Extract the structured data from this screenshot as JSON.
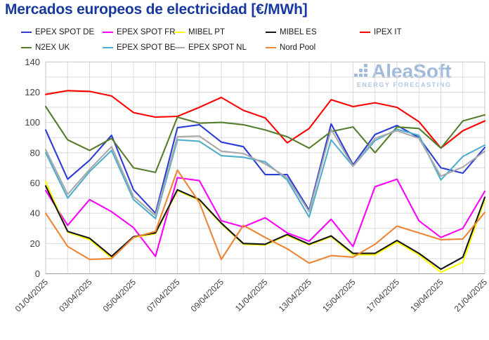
{
  "title": "Mercados europeos de electricidad [€/MWh]",
  "title_color": "#17399E",
  "watermark": {
    "name": "AleaSoft",
    "tagline": "ENERGY FORECASTING",
    "color": "#8FAFD8",
    "tagline_color": "#A3BCDE"
  },
  "axis_text_color": "#3F3F3F",
  "chart_data": {
    "type": "line",
    "title": "Mercados europeos de electricidad [€/MWh]",
    "xlabel": "",
    "ylabel": "",
    "ylim": [
      0,
      140
    ],
    "y_ticks": [
      0,
      20,
      40,
      60,
      80,
      100,
      120,
      140
    ],
    "grid": true,
    "legend_position": "top",
    "x": [
      "01/04/2025",
      "02/04/2025",
      "03/04/2025",
      "04/04/2025",
      "05/04/2025",
      "06/04/2025",
      "07/04/2025",
      "08/04/2025",
      "09/04/2025",
      "10/04/2025",
      "11/04/2025",
      "12/04/2025",
      "13/04/2025",
      "14/04/2025",
      "15/04/2025",
      "16/04/2025",
      "17/04/2025",
      "18/04/2025",
      "19/04/2025",
      "20/04/2025",
      "21/04/2025"
    ],
    "x_tick_labels_shown": [
      "01/04/2025",
      "03/04/2025",
      "05/04/2025",
      "07/04/2025",
      "09/04/2025",
      "11/04/2025",
      "13/04/2025",
      "15/04/2025",
      "17/04/2025",
      "19/04/2025",
      "21/04/2025"
    ],
    "series": [
      {
        "name": "EPEX SPOT DE",
        "color": "#2B3CD8",
        "values": [
          95,
          62.5,
          75,
          91.5,
          55.5,
          40,
          96.5,
          98.5,
          87,
          84,
          65.5,
          65.5,
          42,
          99,
          72,
          92,
          98,
          90,
          70,
          66.5,
          83.5
        ]
      },
      {
        "name": "EPEX SPOT FR",
        "color": "#FF00FF",
        "values": [
          55,
          32,
          49,
          41,
          30.5,
          11.5,
          63.5,
          61.5,
          35,
          31,
          37,
          27,
          21.5,
          36,
          18,
          57.5,
          62.5,
          35,
          24,
          30,
          54.5
        ]
      },
      {
        "name": "MIBEL PT",
        "color": "#FFFF00",
        "values": [
          61,
          27.5,
          22.5,
          10.5,
          24,
          26.5,
          55,
          48.5,
          33,
          19.5,
          19,
          25.5,
          19,
          24.5,
          12.5,
          12.5,
          21,
          12.5,
          1,
          7.5,
          49
        ]
      },
      {
        "name": "MIBEL ES",
        "color": "#151515",
        "values": [
          58,
          28,
          23.5,
          11.5,
          24.5,
          27,
          55.5,
          49,
          33.5,
          20,
          19.5,
          26,
          19.5,
          25,
          13.5,
          13.5,
          22,
          13.5,
          3,
          11,
          50.5
        ]
      },
      {
        "name": "IPEX IT",
        "color": "#FE0000",
        "values": [
          118.5,
          121,
          120.5,
          117.5,
          106.5,
          103.5,
          104,
          110,
          116.5,
          108,
          103,
          86.5,
          96,
          115,
          110.5,
          113,
          110,
          100.5,
          83,
          94.5,
          101
        ]
      },
      {
        "name": "N2EX UK",
        "color": "#567D2E",
        "values": [
          110.5,
          88.5,
          81.5,
          89.5,
          70,
          67,
          103.5,
          99.5,
          100,
          98.5,
          95,
          90.5,
          83,
          94,
          97,
          80,
          97,
          96,
          83,
          101,
          105
        ]
      },
      {
        "name": "EPEX SPOT BE",
        "color": "#4EAECD",
        "values": [
          80,
          50,
          67.5,
          81.5,
          49,
          36.5,
          88.5,
          87.5,
          78,
          77,
          74,
          62,
          37.5,
          88.5,
          71,
          88,
          95.5,
          91.5,
          62,
          77.5,
          85
        ]
      },
      {
        "name": "EPEX SPOT NL",
        "color": "#A9A9A9",
        "values": [
          82,
          52.5,
          69,
          84,
          51,
          38.5,
          90.5,
          91,
          81,
          79.5,
          72.5,
          63.5,
          41,
          95.5,
          71,
          89.5,
          94.5,
          89.5,
          64.5,
          70.5,
          81
        ]
      },
      {
        "name": "Nord Pool",
        "color": "#EE8434",
        "values": [
          40,
          18,
          9.5,
          10,
          24,
          28,
          68.5,
          47,
          9.5,
          32,
          24,
          16.5,
          7,
          12,
          11,
          19.5,
          31.5,
          27,
          22.5,
          23,
          40.5
        ]
      }
    ]
  },
  "legend_layout": {
    "rows": [
      [
        0,
        1,
        2,
        3,
        4
      ],
      [
        5,
        6,
        7,
        8
      ]
    ],
    "lefts": [
      [
        30,
        146,
        248,
        378,
        512
      ],
      [
        30,
        146,
        248,
        378
      ]
    ]
  }
}
